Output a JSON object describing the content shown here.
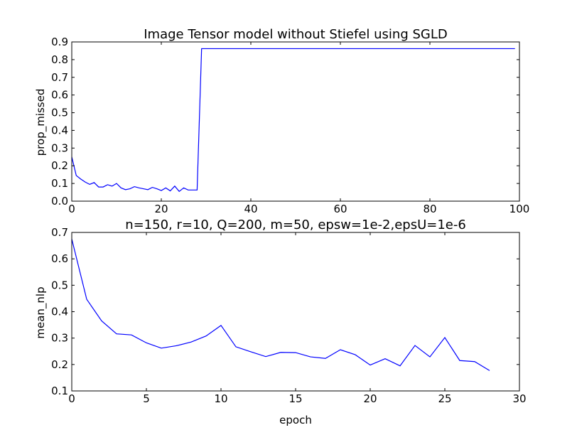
{
  "chart_data": [
    {
      "type": "line",
      "title": "Image Tensor model without Stiefel using SGLD",
      "xlabel": "",
      "ylabel": "prop_missed",
      "xlim": [
        0,
        100
      ],
      "ylim": [
        0.0,
        0.9
      ],
      "xticks": [
        "0",
        "20",
        "40",
        "60",
        "80",
        "100"
      ],
      "yticks": [
        "0.0",
        "0.1",
        "0.2",
        "0.3",
        "0.4",
        "0.5",
        "0.6",
        "0.7",
        "0.8",
        "0.9"
      ],
      "grid": false,
      "color": "#0000ff",
      "series": [
        {
          "x": [
            0,
            1,
            2,
            3,
            4,
            5,
            6,
            7,
            8,
            9,
            10,
            11,
            12,
            13,
            14,
            15,
            16,
            17,
            18,
            19,
            20,
            21,
            22,
            23,
            24,
            25,
            26,
            27,
            28,
            29,
            30,
            35,
            40,
            45,
            50,
            55,
            60,
            65,
            70,
            75,
            80,
            85,
            90,
            95,
            99
          ],
          "values": [
            0.25,
            0.145,
            0.125,
            0.108,
            0.095,
            0.105,
            0.08,
            0.08,
            0.093,
            0.085,
            0.1,
            0.075,
            0.065,
            0.07,
            0.082,
            0.075,
            0.07,
            0.065,
            0.078,
            0.07,
            0.06,
            0.075,
            0.058,
            0.085,
            0.055,
            0.075,
            0.063,
            0.063,
            0.063,
            0.862,
            0.862,
            0.862,
            0.862,
            0.862,
            0.862,
            0.862,
            0.862,
            0.862,
            0.862,
            0.862,
            0.862,
            0.862,
            0.862,
            0.862,
            0.862
          ]
        }
      ]
    },
    {
      "type": "line",
      "title": "n=150, r=10, Q=200, m=50, epsw=1e-2,epsU=1e-6",
      "xlabel": "epoch",
      "ylabel": "mean_nlp",
      "xlim": [
        0,
        30
      ],
      "ylim": [
        0.1,
        0.7
      ],
      "xticks": [
        "0",
        "5",
        "10",
        "15",
        "20",
        "25",
        "30"
      ],
      "yticks": [
        "0.1",
        "0.2",
        "0.3",
        "0.4",
        "0.5",
        "0.6",
        "0.7"
      ],
      "grid": false,
      "color": "#0000ff",
      "series": [
        {
          "x": [
            0,
            1,
            2,
            3,
            4,
            5,
            6,
            7,
            8,
            9,
            10,
            11,
            12,
            13,
            14,
            15,
            16,
            17,
            18,
            19,
            20,
            21,
            22,
            23,
            24,
            25,
            26,
            27,
            28
          ],
          "values": [
            0.675,
            0.447,
            0.365,
            0.316,
            0.312,
            0.282,
            0.262,
            0.271,
            0.285,
            0.308,
            0.348,
            0.267,
            0.248,
            0.23,
            0.246,
            0.245,
            0.229,
            0.223,
            0.256,
            0.237,
            0.198,
            0.222,
            0.195,
            0.272,
            0.229,
            0.302,
            0.215,
            0.211,
            0.177
          ]
        }
      ]
    }
  ]
}
